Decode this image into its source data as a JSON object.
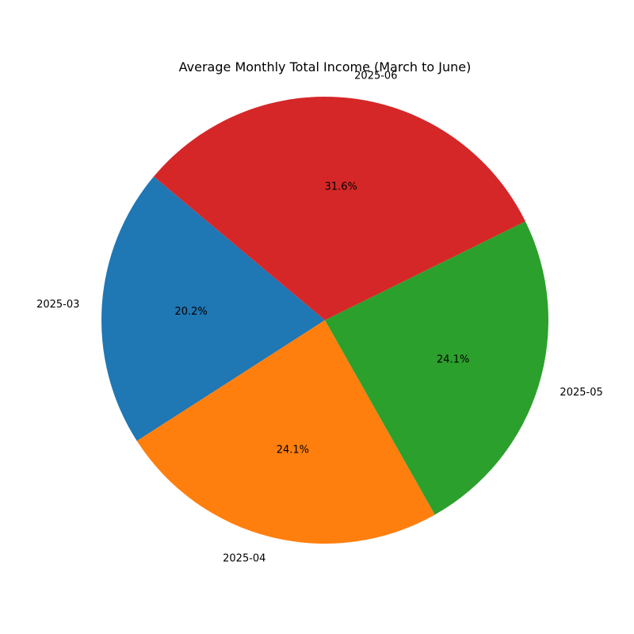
{
  "chart_data": {
    "type": "pie",
    "title": "Average Monthly Total Income (March to June)",
    "categories": [
      "2025-03",
      "2025-04",
      "2025-05",
      "2025-06"
    ],
    "values": [
      20.2,
      24.1,
      24.1,
      31.6
    ],
    "value_labels": [
      "20.2%",
      "24.1%",
      "24.1%",
      "31.6%"
    ],
    "colors": [
      "#1f77b4",
      "#ff7f0e",
      "#2ca02c",
      "#d62728"
    ],
    "start_angle_deg": 140,
    "direction": "counterclockwise",
    "legend": "none"
  }
}
